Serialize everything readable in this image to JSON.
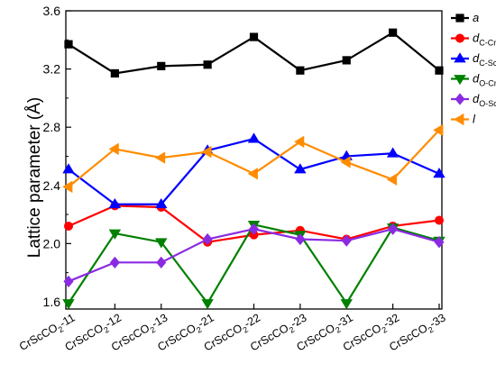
{
  "chart_data": {
    "type": "line",
    "ylabel": "Lattice parameter (Å)",
    "xlabel": "",
    "ylim": [
      1.55,
      3.6
    ],
    "y_ticks": [
      "1.6",
      "2.0",
      "2.4",
      "2.8",
      "3.2",
      "3.6"
    ],
    "y_tick_values": [
      1.6,
      2.0,
      2.4,
      2.8,
      3.2,
      3.6
    ],
    "categories": [
      {
        "base": "CrScCO",
        "sub": "2",
        "suffix": "-11"
      },
      {
        "base": "CrScCO",
        "sub": "2",
        "suffix": "-12"
      },
      {
        "base": "CrScCO",
        "sub": "2",
        "suffix": "-13"
      },
      {
        "base": "CrScCO",
        "sub": "2",
        "suffix": "-21"
      },
      {
        "base": "CrScCO",
        "sub": "2",
        "suffix": "-22"
      },
      {
        "base": "CrScCO",
        "sub": "2",
        "suffix": "-23"
      },
      {
        "base": "CrScCO",
        "sub": "2",
        "suffix": "-31"
      },
      {
        "base": "CrScCO",
        "sub": "2",
        "suffix": "-32"
      },
      {
        "base": "CrScCO",
        "sub": "2",
        "suffix": "-33"
      }
    ],
    "legend_position": "right",
    "grid": false,
    "series": [
      {
        "key": "a",
        "name": "a",
        "sub": "",
        "color": "#000000",
        "marker": "square",
        "values": [
          3.37,
          3.17,
          3.22,
          3.23,
          3.42,
          3.19,
          3.26,
          3.45,
          3.19
        ]
      },
      {
        "key": "dCCr",
        "name": "d",
        "sub": "C-Cr",
        "color": "#ff0000",
        "marker": "circle",
        "values": [
          2.12,
          2.26,
          2.25,
          2.01,
          2.06,
          2.09,
          2.03,
          2.12,
          2.16
        ]
      },
      {
        "key": "dCSc",
        "name": "d",
        "sub": "C-Sc",
        "color": "#0000ff",
        "marker": "triangle-up",
        "values": [
          2.51,
          2.27,
          2.27,
          2.64,
          2.72,
          2.51,
          2.6,
          2.62,
          2.48
        ]
      },
      {
        "key": "dOCr",
        "name": "d",
        "sub": "O-Cr",
        "color": "#008000",
        "marker": "triangle-down",
        "values": [
          1.59,
          2.07,
          2.01,
          1.59,
          2.13,
          2.06,
          1.59,
          2.11,
          2.02
        ]
      },
      {
        "key": "dOSc",
        "name": "d",
        "sub": "O-Sc",
        "color": "#8a2be2",
        "marker": "diamond",
        "values": [
          1.74,
          1.87,
          1.87,
          2.03,
          2.1,
          2.03,
          2.02,
          2.1,
          2.01
        ]
      },
      {
        "key": "l",
        "name": "l",
        "sub": "",
        "color": "#ff8c00",
        "marker": "triangle-left",
        "values": [
          2.39,
          2.65,
          2.59,
          2.63,
          2.48,
          2.7,
          2.56,
          2.44,
          2.78
        ]
      }
    ]
  }
}
